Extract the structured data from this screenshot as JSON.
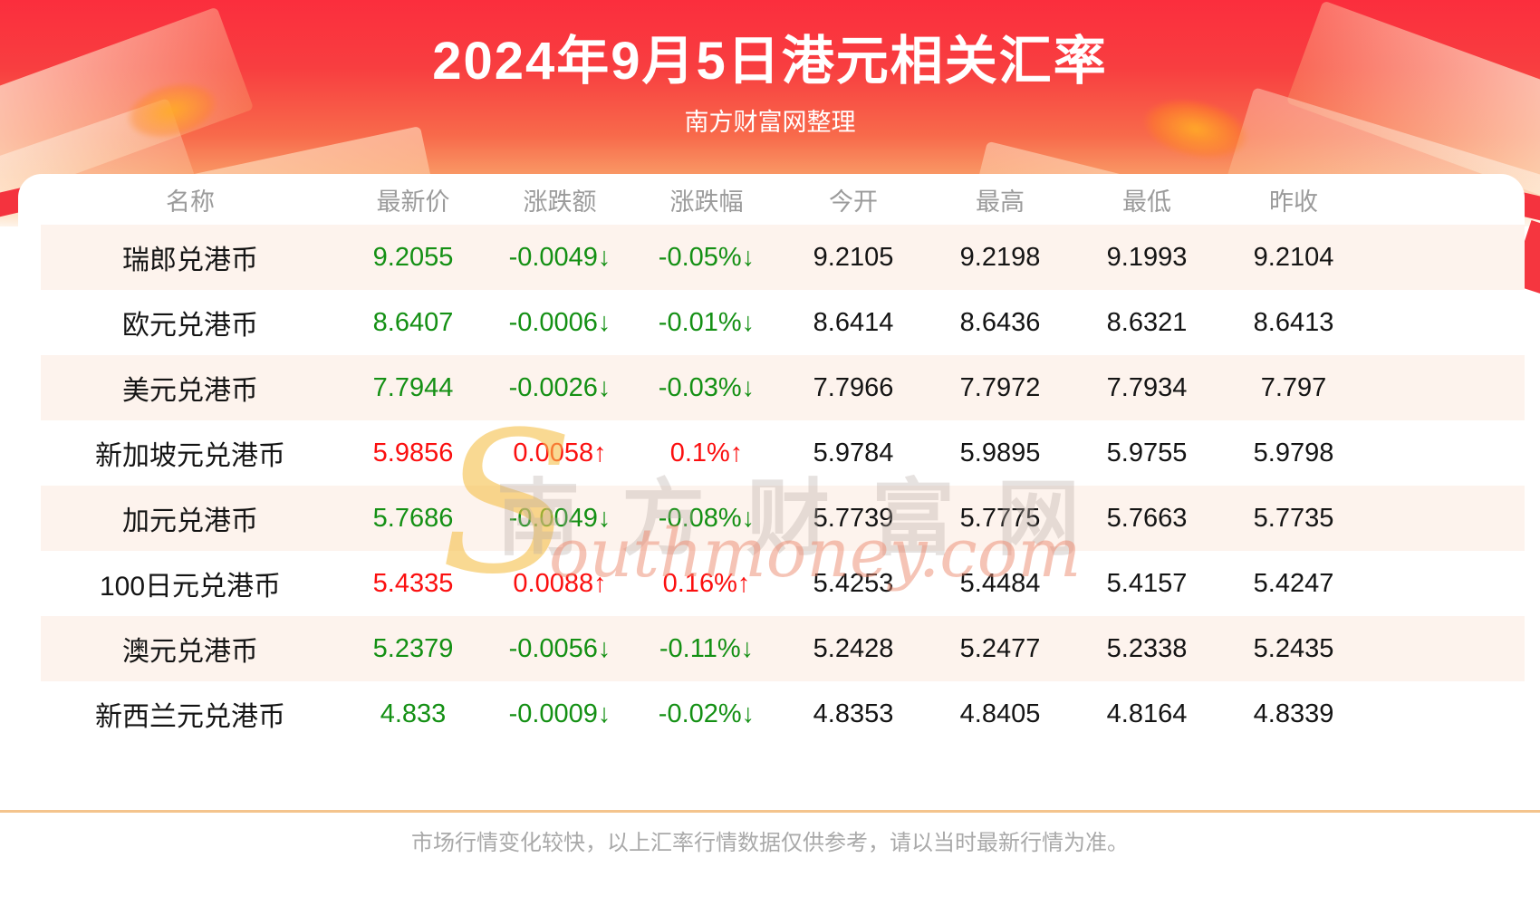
{
  "page": {
    "title": "2024年9月5日港元相关汇率",
    "subtitle": "南方财富网整理",
    "footer_note": "市场行情变化较快，以上汇率行情数据仅供参考，请以当时最新行情为准。"
  },
  "watermark": {
    "initial": "S",
    "cn": "南方财富网",
    "en": "outhmoney.com"
  },
  "colors": {
    "banner_red": "#fb2e3d",
    "up_red": "#fb0f0f",
    "down_green": "#149014",
    "row_alt_pink": "#fdf3ed",
    "divider_orange": "#f4c48d",
    "header_text_gray": "#9b9b9b"
  },
  "table": {
    "columns": [
      "名称",
      "最新价",
      "涨跌额",
      "涨跌幅",
      "今开",
      "最高",
      "最低",
      "昨收"
    ],
    "rows": [
      {
        "name": "瑞郎兑港币",
        "latest": "9.2055",
        "change": "-0.0049↓",
        "change_pct": "-0.05%↓",
        "open": "9.2105",
        "high": "9.2198",
        "low": "9.1993",
        "prev_close": "9.2104",
        "direction": "down"
      },
      {
        "name": "欧元兑港币",
        "latest": "8.6407",
        "change": "-0.0006↓",
        "change_pct": "-0.01%↓",
        "open": "8.6414",
        "high": "8.6436",
        "low": "8.6321",
        "prev_close": "8.6413",
        "direction": "down"
      },
      {
        "name": "美元兑港币",
        "latest": "7.7944",
        "change": "-0.0026↓",
        "change_pct": "-0.03%↓",
        "open": "7.7966",
        "high": "7.7972",
        "low": "7.7934",
        "prev_close": "7.797",
        "direction": "down"
      },
      {
        "name": "新加坡元兑港币",
        "latest": "5.9856",
        "change": "0.0058↑",
        "change_pct": "0.1%↑",
        "open": "5.9784",
        "high": "5.9895",
        "low": "5.9755",
        "prev_close": "5.9798",
        "direction": "up"
      },
      {
        "name": "加元兑港币",
        "latest": "5.7686",
        "change": "-0.0049↓",
        "change_pct": "-0.08%↓",
        "open": "5.7739",
        "high": "5.7775",
        "low": "5.7663",
        "prev_close": "5.7735",
        "direction": "down"
      },
      {
        "name": "100日元兑港币",
        "latest": "5.4335",
        "change": "0.0088↑",
        "change_pct": "0.16%↑",
        "open": "5.4253",
        "high": "5.4484",
        "low": "5.4157",
        "prev_close": "5.4247",
        "direction": "up"
      },
      {
        "name": "澳元兑港币",
        "latest": "5.2379",
        "change": "-0.0056↓",
        "change_pct": "-0.11%↓",
        "open": "5.2428",
        "high": "5.2477",
        "low": "5.2338",
        "prev_close": "5.2435",
        "direction": "down"
      },
      {
        "name": "新西兰元兑港币",
        "latest": "4.833",
        "change": "-0.0009↓",
        "change_pct": "-0.02%↓",
        "open": "4.8353",
        "high": "4.8405",
        "low": "4.8164",
        "prev_close": "4.8339",
        "direction": "down"
      }
    ]
  },
  "chart_data": {
    "type": "table",
    "title": "2024年9月5日港元相关汇率",
    "subtitle": "南方财富网整理",
    "columns": [
      "名称",
      "最新价",
      "涨跌额",
      "涨跌幅",
      "今开",
      "最高",
      "最低",
      "昨收"
    ],
    "rows": [
      [
        "瑞郎兑港币",
        9.2055,
        -0.0049,
        "-0.05%",
        9.2105,
        9.2198,
        9.1993,
        9.2104
      ],
      [
        "欧元兑港币",
        8.6407,
        -0.0006,
        "-0.01%",
        8.6414,
        8.6436,
        8.6321,
        8.6413
      ],
      [
        "美元兑港币",
        7.7944,
        -0.0026,
        "-0.03%",
        7.7966,
        7.7972,
        7.7934,
        7.797
      ],
      [
        "新加坡元兑港币",
        5.9856,
        0.0058,
        "0.1%",
        5.9784,
        5.9895,
        5.9755,
        5.9798
      ],
      [
        "加元兑港币",
        5.7686,
        -0.0049,
        "-0.08%",
        5.7739,
        5.7775,
        5.7663,
        5.7735
      ],
      [
        "100日元兑港币",
        5.4335,
        0.0088,
        "0.16%",
        5.4253,
        5.4484,
        5.4157,
        5.4247
      ],
      [
        "澳元兑港币",
        5.2379,
        -0.0056,
        "-0.11%",
        5.2428,
        5.2477,
        5.2338,
        5.2435
      ],
      [
        "新西兰元兑港币",
        4.833,
        -0.0009,
        "-0.02%",
        4.8353,
        4.8405,
        4.8164,
        4.8339
      ]
    ],
    "notes": "市场行情变化较快，以上汇率行情数据仅供参考，请以当时最新行情为准。"
  }
}
